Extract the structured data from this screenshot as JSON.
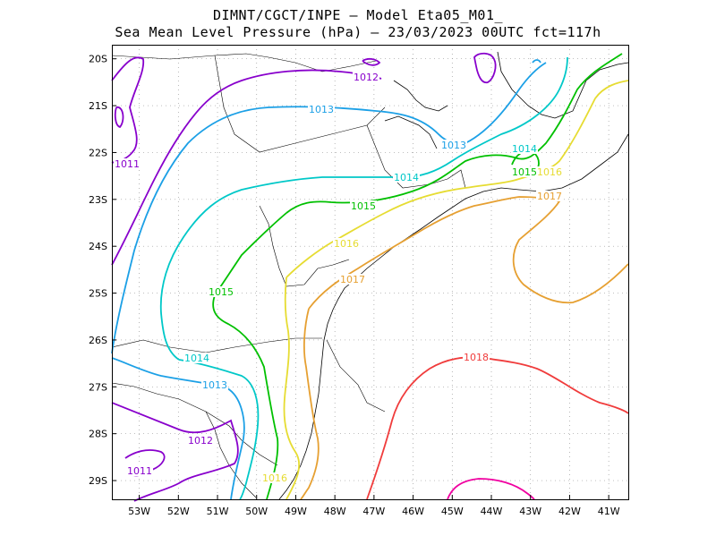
{
  "title": {
    "line1": "DIMNT/CGCT/INPE –  Model Eta05_M01_",
    "line2": "Sea Mean Level Pressure (hPa) – 23/03/2023 00UTC fct=117h"
  },
  "chart_data": {
    "type": "contour-map",
    "variable": "Sea Mean Level Pressure (hPa)",
    "lon_range": [
      -53.7,
      -40.5
    ],
    "lat_range": [
      -29.4,
      -19.7
    ],
    "x_ticks": [
      "53W",
      "52W",
      "51W",
      "50W",
      "49W",
      "48W",
      "47W",
      "46W",
      "45W",
      "44W",
      "43W",
      "42W",
      "41W"
    ],
    "y_ticks": [
      "20S",
      "21S",
      "22S",
      "23S",
      "24S",
      "25S",
      "26S",
      "27S",
      "28S",
      "29S"
    ],
    "grid": true,
    "contour_labels": [
      {
        "text": "1011",
        "color": "#8800cc"
      },
      {
        "text": "1011",
        "color": "#8800cc"
      },
      {
        "text": "1012",
        "color": "#8800cc"
      },
      {
        "text": "1012",
        "color": "#8800cc"
      },
      {
        "text": "1013",
        "color": "#1ca0e6"
      },
      {
        "text": "1013",
        "color": "#1ca0e6"
      },
      {
        "text": "1013",
        "color": "#1ca0e6"
      },
      {
        "text": "1014",
        "color": "#00c8c8"
      },
      {
        "text": "1014",
        "color": "#00c8c8"
      },
      {
        "text": "1014",
        "color": "#00c8c8"
      },
      {
        "text": "1015",
        "color": "#00c000"
      },
      {
        "text": "1015",
        "color": "#00c000"
      },
      {
        "text": "1015",
        "color": "#00c000"
      },
      {
        "text": "1016",
        "color": "#e6dc32"
      },
      {
        "text": "1016",
        "color": "#e6dc32"
      },
      {
        "text": "1016",
        "color": "#e6dc32"
      },
      {
        "text": "1017",
        "color": "#e6a032"
      },
      {
        "text": "1017",
        "color": "#e6a032"
      },
      {
        "text": "1018",
        "color": "#f03c3c"
      }
    ],
    "colors": {
      "1011": "#8800cc",
      "1012": "#8800cc",
      "1013": "#1ca0e6",
      "1014": "#00c8c8",
      "1015": "#00c000",
      "1016": "#e6dc32",
      "1017": "#e6a032",
      "1018": "#f03c3c",
      "1019": "#f000a0"
    }
  }
}
